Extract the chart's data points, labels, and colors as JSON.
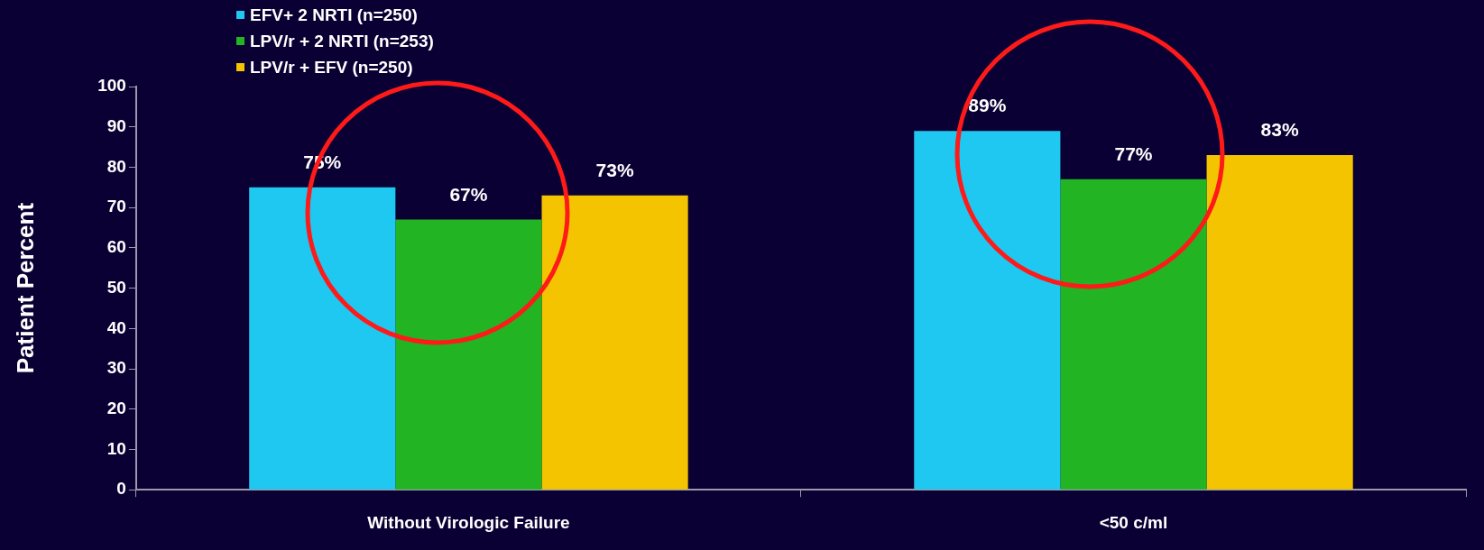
{
  "chart_data": {
    "type": "bar",
    "ylabel": "Patient Percent",
    "categories": [
      "Without Virologic Failure",
      "<50 c/ml"
    ],
    "series": [
      {
        "name": "EFV+ 2 NRTI (n=250)",
        "color": "#1ec8f0",
        "values": [
          75,
          89
        ],
        "value_labels": [
          "75%",
          "89%"
        ]
      },
      {
        "name": "LPV/r + 2 NRTI (n=253)",
        "color": "#22b422",
        "values": [
          67,
          77
        ],
        "value_labels": [
          "67%",
          "77%"
        ]
      },
      {
        "name": "LPV/r + EFV (n=250)",
        "color": "#f5c400",
        "values": [
          73,
          83
        ],
        "value_labels": [
          "73%",
          "83%"
        ]
      }
    ],
    "ylim": [
      0,
      100
    ],
    "yticks": [
      0,
      10,
      20,
      30,
      40,
      50,
      60,
      70,
      80,
      90,
      100
    ],
    "grid": false,
    "legend": "top left"
  }
}
